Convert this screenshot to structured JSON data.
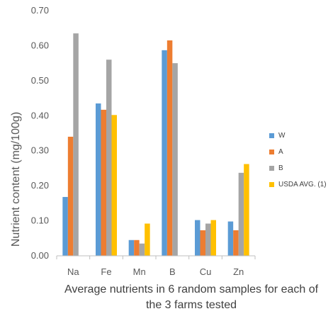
{
  "chart_data": {
    "type": "bar",
    "categories": [
      "Na",
      "Fe",
      "Mn",
      "B",
      "Cu",
      "Zn"
    ],
    "series": [
      {
        "name": "W",
        "color": "#5B9BD5",
        "values": [
          0.168,
          0.435,
          0.045,
          0.587,
          0.102,
          0.098
        ]
      },
      {
        "name": "A",
        "color": "#ED7D31",
        "values": [
          0.34,
          0.417,
          0.045,
          0.615,
          0.073,
          0.073
        ]
      },
      {
        "name": "B",
        "color": "#A5A5A5",
        "values": [
          0.635,
          0.56,
          0.035,
          0.55,
          0.092,
          0.237
        ]
      },
      {
        "name": "USDA AVG. (1)",
        "color": "#FFC000",
        "values": [
          null,
          0.402,
          0.092,
          null,
          0.102,
          0.262
        ]
      }
    ],
    "y_ticks": [
      "0.00",
      "0.10",
      "0.20",
      "0.30",
      "0.40",
      "0.50",
      "0.60",
      "0.70"
    ],
    "ylim": [
      0,
      0.7
    ],
    "ylabel": "Nutrient content (mg/100g)",
    "xlabel": "Average nutrients in 6 random samples for each of the 3 farms tested",
    "legend_position": "right",
    "grid": false
  }
}
